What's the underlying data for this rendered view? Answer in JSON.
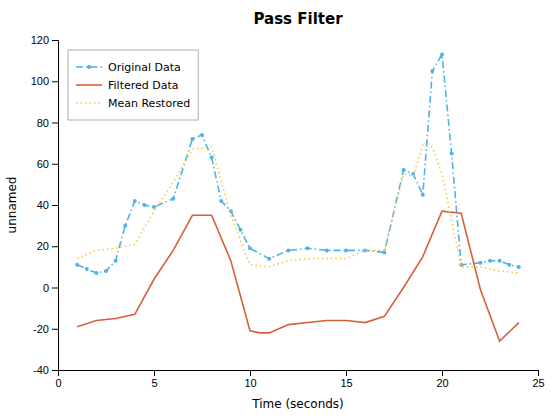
{
  "chart_data": {
    "type": "line",
    "title": "Pass Filter",
    "x_label": "Time (seconds)",
    "y_label": "unnamed",
    "xlim": [
      0,
      25
    ],
    "ylim": [
      -40,
      120
    ],
    "xticks": [
      0,
      5,
      10,
      15,
      20,
      25
    ],
    "yticks": [
      -40,
      -20,
      0,
      20,
      40,
      60,
      80,
      100,
      120
    ],
    "grid": false,
    "legend": "upper left",
    "series": [
      {
        "name": "Original Data",
        "color": "#4db3e6",
        "line_style": "dashdot",
        "marker": "point",
        "x": [
          1,
          1.5,
          2,
          2.5,
          3,
          3.5,
          4,
          4.5,
          5,
          6,
          7,
          7.5,
          8,
          8.5,
          9,
          9.5,
          10,
          11,
          12,
          13,
          14,
          15,
          16,
          17,
          18,
          18.5,
          19,
          19.5,
          20,
          20.5,
          21,
          22,
          22.5,
          23,
          23.5,
          24
        ],
        "values": [
          11,
          9,
          7,
          8,
          13,
          30,
          42,
          40,
          39,
          43,
          72,
          74,
          63,
          42,
          37,
          28,
          19,
          14,
          18,
          19,
          18,
          18,
          18,
          17,
          57,
          55,
          45,
          105,
          113,
          65,
          11,
          12,
          13,
          13,
          11,
          10
        ]
      },
      {
        "name": "Filtered Data",
        "color": "#d95f3b",
        "line_style": "solid",
        "x": [
          1,
          2,
          3,
          4,
          5,
          6,
          7,
          8,
          9,
          10,
          10.5,
          11,
          12,
          13,
          14,
          15,
          16,
          17,
          18,
          19,
          20,
          21,
          22,
          23,
          24
        ],
        "values": [
          -19,
          -16,
          -15,
          -13,
          4,
          18,
          35,
          35,
          13,
          -21,
          -22,
          -22,
          -18,
          -17,
          -16,
          -16,
          -17,
          -14,
          0,
          15,
          37,
          36,
          -1,
          -26,
          -17
        ]
      },
      {
        "name": "Mean Restored",
        "color": "#f5c842",
        "line_style": "dotted",
        "x": [
          1,
          2,
          3,
          4,
          5,
          6,
          7,
          8,
          9,
          10,
          11,
          12,
          13,
          14,
          15,
          16,
          17,
          18,
          18.5,
          19,
          19.5,
          20,
          21,
          22,
          23,
          24
        ],
        "values": [
          14,
          18,
          19,
          21,
          37,
          51,
          67,
          68,
          35,
          11,
          10,
          13,
          14,
          14,
          14,
          18,
          18,
          55,
          54,
          69,
          68,
          55,
          10,
          10,
          8,
          7
        ]
      }
    ]
  }
}
